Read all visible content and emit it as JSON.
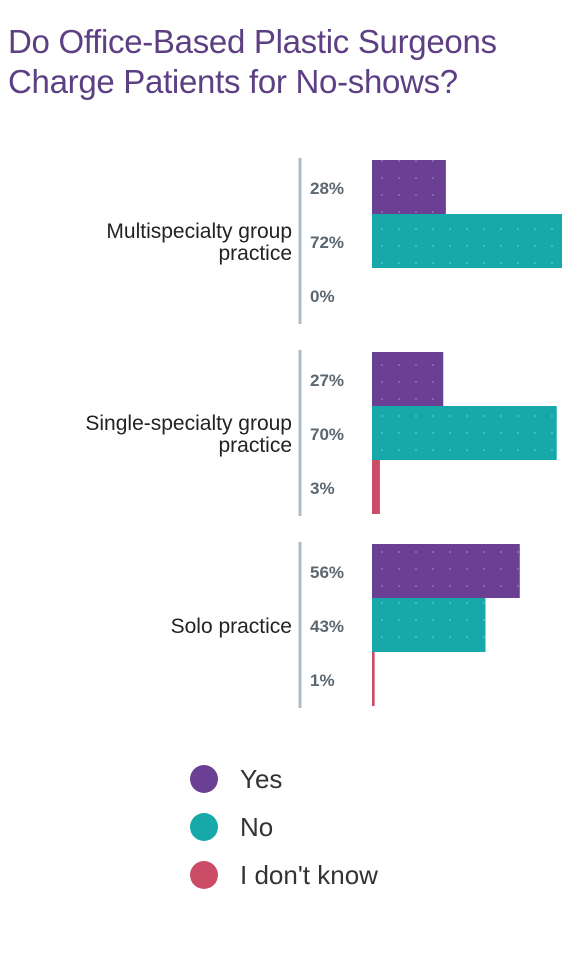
{
  "title": {
    "line1": "Do Office-Based Plastic Surgeons",
    "line2": "Charge Patients for No-shows?"
  },
  "colors": {
    "title": "#5d3f83",
    "axis": "#b3bcc3",
    "value_label": "#5b6770",
    "category_label": "#222222"
  },
  "chart_data": {
    "type": "bar",
    "orientation": "horizontal",
    "title": "Do Office-Based Plastic Surgeons Charge Patients for No-shows?",
    "categories": [
      [
        "Multispecialty group",
        "practice"
      ],
      [
        "Single-specialty group",
        "practice"
      ],
      [
        "Solo practice"
      ]
    ],
    "series": [
      {
        "name": "Yes",
        "color": "#6b3f93",
        "values": [
          28,
          27,
          56
        ],
        "labels": [
          "28%",
          "27%",
          "56%"
        ]
      },
      {
        "name": "No",
        "color": "#17a9a9",
        "values": [
          72,
          70,
          43
        ],
        "labels": [
          "72%",
          "70%",
          "43%"
        ]
      },
      {
        "name": "I don't know",
        "color": "#cc4b67",
        "values": [
          0,
          3,
          1
        ],
        "labels": [
          "0%",
          "3%",
          "1%"
        ]
      }
    ],
    "xlim": [
      0,
      72
    ],
    "grid": false,
    "legend_position": "bottom"
  }
}
